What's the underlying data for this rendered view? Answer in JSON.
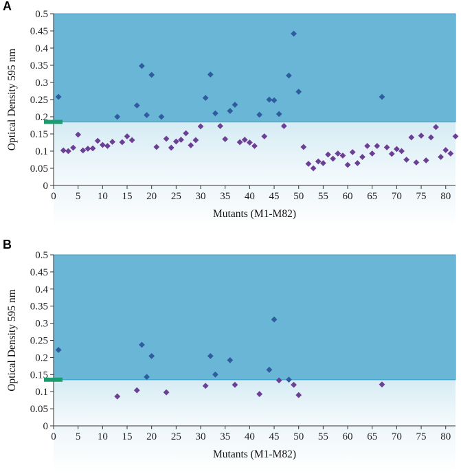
{
  "chart_data": [
    {
      "panel": "A",
      "type": "scatter",
      "xlabel": "Mutants (M1-M82)",
      "ylabel": "Optical Density 595 nm",
      "xlim": [
        0,
        82
      ],
      "ylim": [
        0,
        0.5
      ],
      "xticks": [
        "0",
        "5",
        "10",
        "15",
        "20",
        "25",
        "30",
        "35",
        "40",
        "45",
        "50",
        "55",
        "60",
        "65",
        "70",
        "75",
        "80"
      ],
      "yticks": [
        "0",
        "0.05",
        "0.1",
        "0.15",
        "0.2",
        "0.25",
        "0.3",
        "0.35",
        "0.4",
        "0.45",
        "0.5"
      ],
      "threshold": 0.185,
      "colors": {
        "above": "#2f5c9e",
        "below": "#6b3f93",
        "band": "#6ab6d7",
        "threshold": "#1a9c6e"
      },
      "points": [
        [
          1,
          0.258
        ],
        [
          2,
          0.102
        ],
        [
          3,
          0.1
        ],
        [
          4,
          0.11
        ],
        [
          5,
          0.148
        ],
        [
          6,
          0.102
        ],
        [
          7,
          0.107
        ],
        [
          8,
          0.108
        ],
        [
          9,
          0.13
        ],
        [
          10,
          0.118
        ],
        [
          11,
          0.115
        ],
        [
          12,
          0.127
        ],
        [
          13,
          0.2
        ],
        [
          14,
          0.126
        ],
        [
          15,
          0.143
        ],
        [
          16,
          0.132
        ],
        [
          17,
          0.233
        ],
        [
          18,
          0.348
        ],
        [
          19,
          0.205
        ],
        [
          20,
          0.322
        ],
        [
          21,
          0.112
        ],
        [
          22,
          0.2
        ],
        [
          23,
          0.136
        ],
        [
          24,
          0.11
        ],
        [
          25,
          0.128
        ],
        [
          26,
          0.133
        ],
        [
          27,
          0.152
        ],
        [
          28,
          0.117
        ],
        [
          29,
          0.132
        ],
        [
          30,
          0.172
        ],
        [
          31,
          0.255
        ],
        [
          32,
          0.323
        ],
        [
          33,
          0.21
        ],
        [
          34,
          0.173
        ],
        [
          35,
          0.135
        ],
        [
          36,
          0.217
        ],
        [
          37,
          0.235
        ],
        [
          38,
          0.126
        ],
        [
          39,
          0.133
        ],
        [
          40,
          0.125
        ],
        [
          41,
          0.115
        ],
        [
          42,
          0.206
        ],
        [
          43,
          0.143
        ],
        [
          44,
          0.25
        ],
        [
          45,
          0.248
        ],
        [
          46,
          0.208
        ],
        [
          47,
          0.173
        ],
        [
          48,
          0.32
        ],
        [
          49,
          0.442
        ],
        [
          50,
          0.273
        ],
        [
          51,
          0.112
        ],
        [
          52,
          0.063
        ],
        [
          53,
          0.05
        ],
        [
          54,
          0.07
        ],
        [
          55,
          0.065
        ],
        [
          56,
          0.09
        ],
        [
          57,
          0.078
        ],
        [
          58,
          0.093
        ],
        [
          59,
          0.087
        ],
        [
          60,
          0.06
        ],
        [
          61,
          0.097
        ],
        [
          62,
          0.065
        ],
        [
          63,
          0.083
        ],
        [
          64,
          0.115
        ],
        [
          65,
          0.093
        ],
        [
          66,
          0.115
        ],
        [
          67,
          0.258
        ],
        [
          68,
          0.111
        ],
        [
          69,
          0.092
        ],
        [
          70,
          0.106
        ],
        [
          71,
          0.1
        ],
        [
          72,
          0.075
        ],
        [
          73,
          0.14
        ],
        [
          74,
          0.067
        ],
        [
          75,
          0.145
        ],
        [
          76,
          0.073
        ],
        [
          77,
          0.14
        ],
        [
          78,
          0.17
        ],
        [
          79,
          0.083
        ],
        [
          80,
          0.103
        ],
        [
          81,
          0.093
        ],
        [
          82,
          0.143
        ]
      ]
    },
    {
      "panel": "B",
      "type": "scatter",
      "xlabel": "Mutants (M1-M82)",
      "ylabel": "Optical Density 595 nm",
      "xlim": [
        0,
        82
      ],
      "ylim": [
        0,
        0.5
      ],
      "xticks": [
        "0",
        "5",
        "10",
        "15",
        "20",
        "25",
        "30",
        "35",
        "40",
        "45",
        "50",
        "55",
        "60",
        "65",
        "70",
        "75",
        "80"
      ],
      "yticks": [
        "0",
        "0.05",
        "0.1",
        "0.15",
        "0.2",
        "0.25",
        "0.3",
        "0.35",
        "0.4",
        "0.45",
        "0.5"
      ],
      "threshold": 0.135,
      "colors": {
        "above": "#2f5c9e",
        "below": "#6b3f93",
        "band": "#6ab6d7",
        "threshold": "#1a9c6e"
      },
      "points": [
        [
          1,
          0.222
        ],
        [
          13,
          0.086
        ],
        [
          17,
          0.104
        ],
        [
          18,
          0.237
        ],
        [
          19,
          0.143
        ],
        [
          20,
          0.204
        ],
        [
          23,
          0.098
        ],
        [
          31,
          0.117
        ],
        [
          32,
          0.204
        ],
        [
          33,
          0.15
        ],
        [
          36,
          0.192
        ],
        [
          37,
          0.12
        ],
        [
          42,
          0.093
        ],
        [
          44,
          0.164
        ],
        [
          45,
          0.311
        ],
        [
          46,
          0.133
        ],
        [
          48,
          0.135
        ],
        [
          49,
          0.12
        ],
        [
          50,
          0.09
        ],
        [
          67,
          0.121
        ]
      ]
    }
  ]
}
